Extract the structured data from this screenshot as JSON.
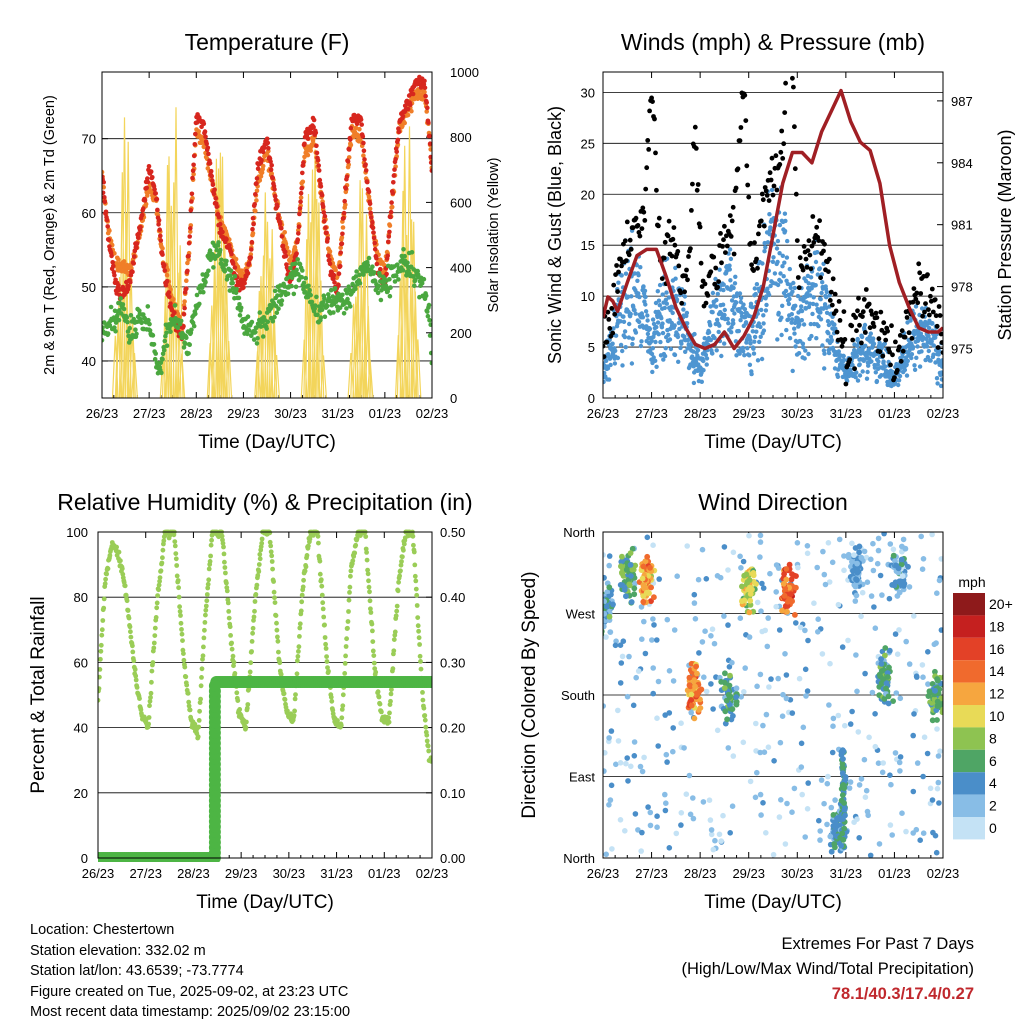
{
  "chart_data": [
    {
      "type": "line",
      "title": "Temperature (F)",
      "xlabel": "Time (Day/UTC)",
      "ylabel": "2m & 9m T (Red, Orange) & 2m Td (Green)",
      "y2label": "Solar Insolation (Yellow)",
      "x_ticks": [
        "26/23",
        "27/23",
        "28/23",
        "29/23",
        "30/23",
        "31/23",
        "01/23",
        "02/23"
      ],
      "xlim": [
        0,
        7
      ],
      "ylim": [
        35,
        79
      ],
      "y_ticks": [
        40,
        50,
        60,
        70
      ],
      "y2lim": [
        0,
        1000
      ],
      "y2_ticks": [
        0,
        200,
        400,
        600,
        800,
        1000
      ],
      "grid": "horizontal",
      "series": [
        {
          "color": "#d7261e",
          "x": [
            0,
            0.15,
            0.3,
            0.45,
            0.6,
            0.8,
            1.0,
            1.15,
            1.3,
            1.5,
            1.7,
            1.85,
            2.0,
            2.15,
            2.3,
            2.5,
            2.7,
            2.85,
            3.0,
            3.15,
            3.3,
            3.5,
            3.7,
            3.85,
            4.0,
            4.15,
            4.3,
            4.5,
            4.7,
            4.85,
            5.0,
            5.15,
            5.3,
            5.5,
            5.7,
            5.85,
            6.0,
            6.15,
            6.3,
            6.5,
            6.7,
            6.85,
            6.95,
            7.0
          ],
          "y": [
            65,
            56,
            50,
            49,
            51,
            58,
            66,
            62,
            53,
            46,
            43,
            56,
            73,
            72,
            66,
            58,
            55,
            51,
            50,
            54,
            66,
            70,
            61,
            55,
            51,
            56,
            70,
            72,
            60,
            52,
            49,
            62,
            73,
            72,
            60,
            52,
            50,
            62,
            72,
            75,
            78,
            77,
            70,
            65
          ]
        },
        {
          "color": "#f07e28",
          "x": [
            0,
            0.15,
            0.3,
            0.45,
            0.6,
            0.8,
            1.0,
            1.15,
            1.3,
            1.5,
            1.7,
            1.85,
            2.0,
            2.15,
            2.3,
            2.5,
            2.7,
            2.85,
            3.0,
            3.15,
            3.3,
            3.5,
            3.7,
            3.85,
            4.0,
            4.15,
            4.3,
            4.5,
            4.7,
            4.85,
            5.0,
            5.15,
            5.3,
            5.5,
            5.7,
            5.85,
            6.0,
            6.15,
            6.3,
            6.5,
            6.7,
            6.85,
            6.95,
            7.0
          ],
          "y": [
            65,
            57,
            53,
            53,
            52,
            57,
            64,
            61,
            54,
            48,
            44,
            55,
            71,
            70,
            65,
            59,
            56,
            53,
            51,
            54,
            64,
            68,
            61,
            57,
            53,
            56,
            68,
            70,
            60,
            54,
            51,
            61,
            71,
            70,
            60,
            54,
            52,
            61,
            71,
            74,
            76,
            76,
            70,
            66
          ]
        },
        {
          "color": "#4aa73f",
          "x": [
            0,
            0.2,
            0.4,
            0.6,
            0.8,
            1.0,
            1.2,
            1.4,
            1.6,
            1.8,
            2.0,
            2.2,
            2.4,
            2.6,
            2.8,
            3.0,
            3.2,
            3.4,
            3.6,
            3.8,
            4.0,
            4.2,
            4.4,
            4.6,
            4.8,
            5.0,
            5.2,
            5.4,
            5.6,
            5.8,
            6.0,
            6.2,
            6.4,
            6.6,
            6.8,
            6.95,
            7.0
          ],
          "y": [
            43,
            45,
            47,
            44,
            46,
            45,
            39,
            44,
            46,
            42,
            47,
            52,
            55,
            53,
            50,
            45,
            44,
            45,
            47,
            49,
            51,
            52,
            49,
            46,
            48,
            48,
            48,
            51,
            53,
            51,
            50,
            52,
            53,
            52,
            50,
            46,
            41
          ]
        }
      ],
      "y2_series": {
        "color": "#f3d55b",
        "day_peaks": [
          920,
          960,
          900,
          840,
          950,
          720,
          960
        ]
      }
    },
    {
      "type": "scatter",
      "title": "Winds (mph) & Pressure (mb)",
      "xlabel": "Time (Day/UTC)",
      "ylabel": "Sonic Wind & Gust (Blue, Black)",
      "y2label": "Station Pressure (Maroon)",
      "x_ticks": [
        "26/23",
        "27/23",
        "28/23",
        "29/23",
        "30/23",
        "31/23",
        "01/23",
        "02/23"
      ],
      "xlim": [
        0,
        7
      ],
      "ylim": [
        0,
        32
      ],
      "y_ticks": [
        0,
        5,
        10,
        15,
        20,
        25,
        30
      ],
      "y2lim": [
        972.6,
        988.4
      ],
      "y2_ticks": [
        975,
        978,
        981,
        984,
        987
      ],
      "grid": "horizontal",
      "wind_mean_by_day": [
        3,
        9,
        4.5,
        8,
        11,
        4,
        3,
        5
      ],
      "gust_peaks": [
        {
          "x": 1.0,
          "y": 28
        },
        {
          "x": 1.9,
          "y": 24
        },
        {
          "x": 2.9,
          "y": 27
        },
        {
          "x": 3.85,
          "y": 30
        }
      ],
      "pressure": {
        "color": "#a01f24",
        "x": [
          0,
          0.1,
          0.2,
          0.3,
          0.5,
          0.7,
          0.9,
          1.1,
          1.3,
          1.5,
          1.7,
          1.9,
          2.1,
          2.3,
          2.5,
          2.7,
          2.9,
          3.1,
          3.3,
          3.5,
          3.7,
          3.9,
          4.1,
          4.3,
          4.5,
          4.7,
          4.9,
          5.1,
          5.3,
          5.5,
          5.7,
          5.9,
          6.1,
          6.3,
          6.5,
          6.7,
          6.9,
          7.0
        ],
        "y": [
          976.5,
          977.5,
          977.3,
          976.8,
          978.2,
          979.5,
          979.8,
          979.8,
          978.5,
          977.0,
          976.0,
          975.2,
          975.0,
          975.2,
          975.8,
          975.0,
          975.6,
          976.5,
          978.0,
          980.5,
          983.0,
          984.5,
          984.5,
          984.0,
          985.5,
          986.5,
          987.5,
          986.0,
          985.0,
          984.6,
          983.0,
          980.0,
          978.2,
          977.0,
          976.0,
          975.8,
          975.8,
          976.0
        ]
      }
    },
    {
      "type": "line",
      "title": "Relative Humidity (%) & Precipitation (in)",
      "xlabel": "Time (Day/UTC)",
      "ylabel": "Percent & Total Rainfall",
      "x_ticks": [
        "26/23",
        "27/23",
        "28/23",
        "29/23",
        "30/23",
        "31/23",
        "01/23",
        "02/23"
      ],
      "xlim": [
        0,
        7
      ],
      "ylim": [
        0,
        100
      ],
      "y_ticks": [
        0,
        20,
        40,
        60,
        80,
        100
      ],
      "y2lim": [
        0,
        0.5
      ],
      "y2_ticks": [
        "0.00",
        "0.10",
        "0.20",
        "0.30",
        "0.40",
        "0.50"
      ],
      "grid": "horizontal",
      "series": [
        {
          "color": "#9acd57",
          "x": [
            0,
            0.15,
            0.3,
            0.45,
            0.6,
            0.75,
            0.9,
            1.05,
            1.25,
            1.4,
            1.6,
            1.8,
            1.95,
            2.1,
            2.25,
            2.4,
            2.6,
            2.8,
            2.95,
            3.1,
            3.3,
            3.45,
            3.6,
            3.8,
            3.95,
            4.1,
            4.3,
            4.45,
            4.6,
            4.8,
            4.95,
            5.1,
            5.3,
            5.45,
            5.6,
            5.8,
            5.95,
            6.1,
            6.3,
            6.45,
            6.6,
            6.8,
            6.95,
            7.0
          ],
          "y": [
            48,
            85,
            97,
            92,
            80,
            60,
            45,
            40,
            80,
            100,
            100,
            60,
            42,
            38,
            75,
            100,
            100,
            65,
            45,
            40,
            80,
            100,
            100,
            60,
            45,
            42,
            85,
            100,
            100,
            60,
            42,
            40,
            88,
            100,
            100,
            58,
            43,
            42,
            85,
            100,
            100,
            50,
            30,
            30
          ]
        },
        {
          "color": "#4db544",
          "step_x": 2.45,
          "before": 0.0,
          "after": 0.27
        }
      ]
    },
    {
      "type": "scatter",
      "title": "Wind Direction",
      "xlabel": "Time (Day/UTC)",
      "ylabel": "Direction (Colored By Speed)",
      "x_ticks": [
        "26/23",
        "27/23",
        "28/23",
        "29/23",
        "30/23",
        "31/23",
        "01/23",
        "02/23"
      ],
      "xlim": [
        0,
        7
      ],
      "y_ticks": [
        "North",
        "East",
        "South",
        "West",
        "North"
      ],
      "ylim": [
        0,
        360
      ],
      "grid": "horizontal",
      "legend": {
        "title": "mph",
        "labels": [
          "20+",
          "18",
          "16",
          "14",
          "12",
          "10",
          "8",
          "6",
          "4",
          "2",
          "0"
        ],
        "colors": [
          "#8e1a1b",
          "#c5201f",
          "#e34127",
          "#f06a2d",
          "#f6a63f",
          "#e8da57",
          "#8ec351",
          "#4fa565",
          "#4a8ec9",
          "#88bde6",
          "#c4e2f5"
        ]
      },
      "clusters": [
        {
          "x": 0.05,
          "dir": 275,
          "spd": 4
        },
        {
          "x": 0.5,
          "dir": 310,
          "spd": 6
        },
        {
          "x": 0.9,
          "dir": 310,
          "spd": 12
        },
        {
          "x": 1.9,
          "dir": 185,
          "spd": 13
        },
        {
          "x": 2.6,
          "dir": 180,
          "spd": 5
        },
        {
          "x": 3.0,
          "dir": 300,
          "spd": 9
        },
        {
          "x": 3.8,
          "dir": 295,
          "spd": 15
        },
        {
          "x": 4.8,
          "dir": 30,
          "spd": 4
        },
        {
          "x": 5.2,
          "dir": 320,
          "spd": 3
        },
        {
          "x": 6.1,
          "dir": 320,
          "spd": 3
        },
        {
          "x": 5.8,
          "dir": 200,
          "spd": 5
        },
        {
          "x": 6.85,
          "dir": 180,
          "spd": 6
        }
      ]
    }
  ],
  "info": {
    "location": "Location: Chestertown",
    "elevation": "Station elevation: 332.02 m",
    "latlon": "Station lat/lon: 43.6539; -73.7774",
    "created": "Figure created on Tue, 2025-09-02, at 23:23 UTC",
    "recent": "Most recent data timestamp: 2025/09/02 23:15:00"
  },
  "extremes": {
    "title": "Extremes For Past 7 Days",
    "subtitle": "(High/Low/Max Wind/Total Precipitation)",
    "values": "78.1/40.3/17.4/0.27"
  }
}
